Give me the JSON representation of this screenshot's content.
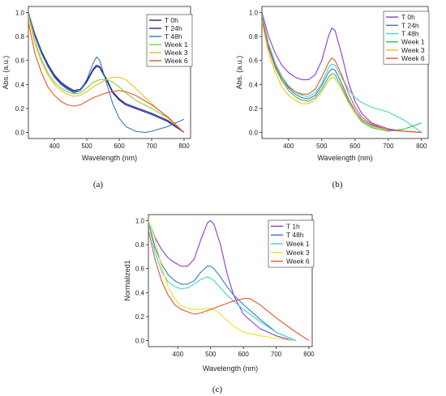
{
  "chart_data": [
    {
      "type": "line",
      "panel_label": "(a)",
      "xlabel": "Wavelength (nm)",
      "ylabel": "Abs. (a.u.)",
      "xlim": [
        320,
        820
      ],
      "ylim": [
        -0.05,
        1.05
      ],
      "xticks": [
        400,
        500,
        600,
        700,
        800
      ],
      "yticks": [
        0.0,
        0.2,
        0.4,
        0.6,
        0.8,
        1.0
      ],
      "tick_labels_x": [
        "400",
        "500",
        "600",
        "700",
        "800"
      ],
      "tick_labels_y": [
        "0.0",
        "0.2",
        "0.4",
        "0.6",
        "0.8",
        "1.0"
      ],
      "legend_position": "top-right",
      "series": [
        {
          "name": "T 0h",
          "color": "#1f1f8a",
          "x": [
            320,
            340,
            360,
            380,
            400,
            420,
            440,
            460,
            480,
            500,
            520,
            530,
            540,
            560,
            580,
            600,
            620,
            650,
            700,
            750,
            800
          ],
          "y": [
            1.0,
            0.82,
            0.68,
            0.57,
            0.48,
            0.42,
            0.38,
            0.35,
            0.36,
            0.43,
            0.53,
            0.56,
            0.55,
            0.45,
            0.34,
            0.28,
            0.24,
            0.21,
            0.16,
            0.1,
            0.0
          ]
        },
        {
          "name": "T 24h",
          "color": "#1c2bb0",
          "x": [
            320,
            340,
            360,
            380,
            400,
            420,
            440,
            460,
            480,
            500,
            520,
            530,
            540,
            560,
            580,
            600,
            620,
            650,
            700,
            750,
            800
          ],
          "y": [
            0.99,
            0.81,
            0.67,
            0.56,
            0.47,
            0.41,
            0.37,
            0.34,
            0.35,
            0.42,
            0.52,
            0.55,
            0.54,
            0.44,
            0.33,
            0.27,
            0.23,
            0.2,
            0.15,
            0.09,
            0.0
          ]
        },
        {
          "name": "T 48h",
          "color": "#3a78c0",
          "x": [
            320,
            340,
            360,
            380,
            400,
            420,
            440,
            460,
            480,
            500,
            520,
            530,
            540,
            560,
            580,
            600,
            620,
            650,
            680,
            700,
            750,
            800
          ],
          "y": [
            1.0,
            0.8,
            0.66,
            0.55,
            0.46,
            0.4,
            0.36,
            0.33,
            0.35,
            0.44,
            0.58,
            0.63,
            0.6,
            0.42,
            0.24,
            0.12,
            0.05,
            0.01,
            0.0,
            0.01,
            0.05,
            0.11
          ]
        },
        {
          "name": "Week 1",
          "color": "#7dd23a",
          "x": [
            320,
            340,
            360,
            380,
            400,
            420,
            440,
            460,
            480,
            500,
            520,
            540,
            560,
            580,
            600,
            620,
            650,
            700,
            750,
            800
          ],
          "y": [
            0.98,
            0.76,
            0.61,
            0.5,
            0.42,
            0.37,
            0.34,
            0.32,
            0.33,
            0.37,
            0.42,
            0.44,
            0.44,
            0.42,
            0.38,
            0.33,
            0.27,
            0.2,
            0.12,
            0.0
          ]
        },
        {
          "name": "Week 3",
          "color": "#f0c020",
          "x": [
            320,
            340,
            360,
            380,
            400,
            420,
            440,
            460,
            480,
            500,
            520,
            540,
            560,
            580,
            600,
            620,
            650,
            700,
            750,
            800
          ],
          "y": [
            0.97,
            0.74,
            0.59,
            0.48,
            0.4,
            0.35,
            0.32,
            0.3,
            0.31,
            0.34,
            0.38,
            0.41,
            0.44,
            0.46,
            0.46,
            0.44,
            0.37,
            0.24,
            0.12,
            0.0
          ]
        },
        {
          "name": "Week 6",
          "color": "#e8552a",
          "x": [
            320,
            340,
            360,
            380,
            400,
            420,
            440,
            460,
            480,
            500,
            520,
            540,
            560,
            580,
            600,
            620,
            650,
            700,
            750,
            800
          ],
          "y": [
            0.92,
            0.66,
            0.5,
            0.38,
            0.31,
            0.26,
            0.23,
            0.22,
            0.23,
            0.26,
            0.29,
            0.31,
            0.33,
            0.34,
            0.35,
            0.34,
            0.31,
            0.23,
            0.13,
            0.0
          ]
        }
      ]
    },
    {
      "type": "line",
      "panel_label": "(b)",
      "xlabel": "Wavelength (nm)",
      "ylabel": "Abs. (a.u.)",
      "xlim": [
        320,
        820
      ],
      "ylim": [
        -0.05,
        1.05
      ],
      "xticks": [
        400,
        500,
        600,
        700,
        800
      ],
      "yticks": [
        0.0,
        0.2,
        0.4,
        0.6,
        0.8,
        1.0
      ],
      "tick_labels_x": [
        "400",
        "500",
        "600",
        "700",
        "800"
      ],
      "tick_labels_y": [
        "0.0",
        "0.2",
        "0.4",
        "0.6",
        "0.8",
        "1.0"
      ],
      "legend_position": "top-right",
      "series": [
        {
          "name": "T 0h",
          "color": "#8a3ad6",
          "x": [
            320,
            340,
            360,
            380,
            400,
            420,
            440,
            460,
            480,
            500,
            520,
            530,
            540,
            560,
            580,
            600,
            620,
            650,
            700,
            750,
            800
          ],
          "y": [
            1.0,
            0.8,
            0.66,
            0.56,
            0.5,
            0.46,
            0.44,
            0.44,
            0.48,
            0.6,
            0.8,
            0.87,
            0.85,
            0.65,
            0.42,
            0.26,
            0.16,
            0.08,
            0.03,
            0.01,
            0.0
          ]
        },
        {
          "name": "T 24h",
          "color": "#3a78c0",
          "x": [
            320,
            340,
            360,
            380,
            400,
            420,
            440,
            460,
            480,
            500,
            520,
            530,
            540,
            560,
            580,
            600,
            620,
            650,
            700,
            750,
            800
          ],
          "y": [
            0.97,
            0.72,
            0.56,
            0.45,
            0.37,
            0.32,
            0.29,
            0.28,
            0.31,
            0.39,
            0.5,
            0.53,
            0.52,
            0.41,
            0.28,
            0.18,
            0.11,
            0.06,
            0.02,
            0.01,
            0.0
          ]
        },
        {
          "name": "T 48h",
          "color": "#3ad6d0",
          "x": [
            320,
            340,
            360,
            380,
            400,
            420,
            440,
            460,
            480,
            500,
            520,
            530,
            540,
            560,
            580,
            600,
            620,
            650,
            700,
            750,
            800
          ],
          "y": [
            0.98,
            0.74,
            0.58,
            0.47,
            0.39,
            0.34,
            0.31,
            0.3,
            0.33,
            0.41,
            0.54,
            0.57,
            0.56,
            0.46,
            0.36,
            0.29,
            0.25,
            0.21,
            0.17,
            0.1,
            0.0
          ]
        },
        {
          "name": "Week 1",
          "color": "#3ac04a",
          "x": [
            320,
            340,
            360,
            380,
            400,
            420,
            440,
            460,
            480,
            500,
            520,
            530,
            540,
            560,
            580,
            600,
            620,
            650,
            700,
            750,
            800
          ],
          "y": [
            0.95,
            0.7,
            0.54,
            0.43,
            0.35,
            0.3,
            0.27,
            0.26,
            0.29,
            0.36,
            0.46,
            0.49,
            0.48,
            0.38,
            0.26,
            0.16,
            0.09,
            0.04,
            0.01,
            0.03,
            0.08
          ]
        },
        {
          "name": "Week 3",
          "color": "#f0c020",
          "x": [
            320,
            340,
            360,
            380,
            400,
            420,
            440,
            460,
            480,
            500,
            520,
            530,
            540,
            560,
            580,
            600,
            620,
            650,
            700,
            750,
            800
          ],
          "y": [
            0.93,
            0.66,
            0.5,
            0.38,
            0.31,
            0.27,
            0.24,
            0.24,
            0.27,
            0.34,
            0.43,
            0.46,
            0.45,
            0.36,
            0.25,
            0.16,
            0.1,
            0.05,
            0.02,
            0.01,
            0.0
          ]
        },
        {
          "name": "Week 6",
          "color": "#e8552a",
          "x": [
            320,
            340,
            360,
            380,
            400,
            420,
            440,
            460,
            480,
            500,
            520,
            530,
            540,
            560,
            580,
            600,
            620,
            650,
            700,
            750,
            800
          ],
          "y": [
            0.96,
            0.7,
            0.55,
            0.45,
            0.38,
            0.34,
            0.32,
            0.32,
            0.36,
            0.46,
            0.58,
            0.62,
            0.6,
            0.48,
            0.33,
            0.21,
            0.13,
            0.07,
            0.02,
            0.01,
            0.0
          ]
        }
      ]
    },
    {
      "type": "line",
      "panel_label": "(c)",
      "xlabel": "Wavelength (nm)",
      "ylabel": "Normalized1",
      "xlim": [
        310,
        810
      ],
      "ylim": [
        -0.05,
        1.05
      ],
      "xticks": [
        400,
        500,
        600,
        700,
        800
      ],
      "yticks": [
        0.0,
        0.2,
        0.4,
        0.6,
        0.8,
        1.0
      ],
      "tick_labels_x": [
        "400",
        "500",
        "600",
        "700",
        "800"
      ],
      "tick_labels_y": [
        "0.0",
        "0.2",
        "0.4",
        "0.6",
        "0.8",
        "1.0"
      ],
      "legend_position": "top-right",
      "series": [
        {
          "name": "T 1h",
          "color": "#8a3ad6",
          "x": [
            310,
            330,
            350,
            370,
            390,
            410,
            430,
            450,
            470,
            490,
            500,
            510,
            530,
            550,
            570,
            600,
            650,
            700,
            750
          ],
          "y": [
            1.0,
            0.86,
            0.76,
            0.69,
            0.65,
            0.62,
            0.62,
            0.68,
            0.84,
            0.98,
            1.0,
            0.97,
            0.8,
            0.56,
            0.38,
            0.22,
            0.1,
            0.04,
            0.0
          ]
        },
        {
          "name": "T 48h",
          "color": "#3a78c0",
          "x": [
            310,
            330,
            350,
            370,
            390,
            410,
            430,
            450,
            470,
            490,
            500,
            510,
            530,
            550,
            570,
            600,
            650,
            700,
            760
          ],
          "y": [
            0.99,
            0.78,
            0.64,
            0.55,
            0.5,
            0.47,
            0.47,
            0.5,
            0.57,
            0.62,
            0.62,
            0.6,
            0.53,
            0.45,
            0.38,
            0.3,
            0.18,
            0.07,
            0.0
          ]
        },
        {
          "name": "Week 1",
          "color": "#3ad6d0",
          "x": [
            310,
            330,
            350,
            370,
            390,
            410,
            430,
            450,
            470,
            490,
            500,
            510,
            530,
            550,
            570,
            600,
            650,
            700,
            760
          ],
          "y": [
            0.98,
            0.74,
            0.58,
            0.49,
            0.45,
            0.43,
            0.44,
            0.47,
            0.51,
            0.53,
            0.52,
            0.5,
            0.44,
            0.38,
            0.33,
            0.26,
            0.16,
            0.07,
            0.0
          ]
        },
        {
          "name": "Week 3",
          "color": "#f0e020",
          "x": [
            310,
            330,
            350,
            370,
            390,
            410,
            430,
            450,
            470,
            490,
            510,
            530,
            550,
            570,
            600,
            650,
            700,
            750
          ],
          "y": [
            1.0,
            0.85,
            0.62,
            0.45,
            0.35,
            0.29,
            0.27,
            0.26,
            0.26,
            0.27,
            0.26,
            0.22,
            0.17,
            0.12,
            0.07,
            0.04,
            0.02,
            0.0
          ]
        },
        {
          "name": "Week 6",
          "color": "#e8552a",
          "x": [
            310,
            330,
            350,
            370,
            390,
            410,
            430,
            450,
            470,
            490,
            510,
            530,
            550,
            570,
            600,
            620,
            650,
            700,
            750,
            800
          ],
          "y": [
            0.92,
            0.68,
            0.5,
            0.38,
            0.3,
            0.26,
            0.24,
            0.22,
            0.23,
            0.25,
            0.27,
            0.29,
            0.31,
            0.33,
            0.35,
            0.35,
            0.3,
            0.19,
            0.09,
            0.0
          ]
        }
      ]
    }
  ]
}
